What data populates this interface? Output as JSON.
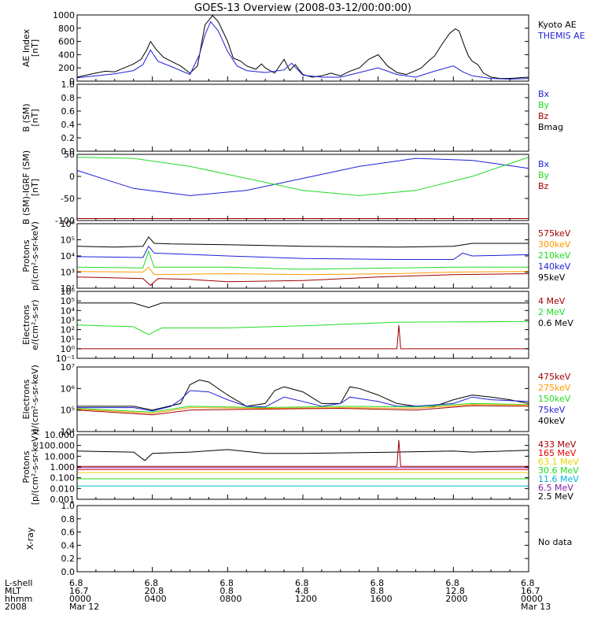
{
  "title": "GOES-13 Overview (2008-03-12/00:00:00)",
  "colors": {
    "black": "#000000",
    "blue": "#1f1fd8",
    "green": "#22dd22",
    "darkred": "#a00000",
    "orange": "#ff9900",
    "yellow": "#e6d400",
    "cyan": "#00b4d8",
    "purple": "#7a22a0",
    "red": "#e00000"
  },
  "panels": [
    {
      "id": "ae",
      "ylabel": [
        "AE Index",
        "[nT]"
      ],
      "ticks": [
        "1000",
        "800",
        "600",
        "400",
        "200",
        "0"
      ],
      "legend": [
        {
          "text": "Kyoto AE",
          "color": "black"
        },
        {
          "text": "THEMIS AE",
          "color": "blue"
        }
      ]
    },
    {
      "id": "bsm",
      "ylabel": [
        "B (SM)",
        "[nT]"
      ],
      "ticks": [
        "1.0",
        "0.8",
        "0.6",
        "0.4",
        "0.2",
        "0.0"
      ],
      "legend": [
        {
          "text": "Bx",
          "color": "blue"
        },
        {
          "text": "By",
          "color": "green"
        },
        {
          "text": "Bz",
          "color": "darkred"
        },
        {
          "text": "Bmag",
          "color": "black"
        }
      ]
    },
    {
      "id": "bigrf",
      "ylabel": [
        "B (SM)-IGRF (SM)",
        "[nT]"
      ],
      "ticks": [
        "50",
        "0",
        "-50",
        "-100"
      ],
      "legend": [
        {
          "text": "Bx",
          "color": "blue"
        },
        {
          "text": "By",
          "color": "green"
        },
        {
          "text": "Bz",
          "color": "darkred"
        }
      ]
    },
    {
      "id": "protons_mageds",
      "ylabel": [
        "Protons",
        "p/(cm²-s-sr-keV)"
      ],
      "ticks": [
        "10⁶",
        "10⁵",
        "10⁴",
        "10³",
        "10²"
      ],
      "legend": [
        {
          "text": "575keV",
          "color": "darkred"
        },
        {
          "text": "300keV",
          "color": "orange"
        },
        {
          "text": "210keV",
          "color": "green"
        },
        {
          "text": "140keV",
          "color": "blue"
        },
        {
          "text": "95keV",
          "color": "black"
        }
      ]
    },
    {
      "id": "electrons_epead",
      "ylabel": [
        "Electrons",
        "e/(cm²-s-sr)"
      ],
      "ticks": [
        "10⁶",
        "10⁵",
        "10⁴",
        "10³",
        "10²",
        "10¹",
        "10⁰",
        "10⁻¹"
      ],
      "legend": [
        {
          "text": "4 MeV",
          "color": "darkred"
        },
        {
          "text": "2 MeV",
          "color": "green"
        },
        {
          "text": "0.6 MeV",
          "color": "black"
        }
      ]
    },
    {
      "id": "electrons_maged",
      "ylabel": [
        "Electrons",
        "e/(cm²-s-sr-keV)"
      ],
      "ticks": [
        "10⁷",
        "10⁶",
        "10⁵",
        "10⁴"
      ],
      "legend": [
        {
          "text": "475keV",
          "color": "darkred"
        },
        {
          "text": "275keV",
          "color": "orange"
        },
        {
          "text": "150keV",
          "color": "green"
        },
        {
          "text": "75keV",
          "color": "blue"
        },
        {
          "text": "40keV",
          "color": "black"
        }
      ]
    },
    {
      "id": "protons_epead",
      "ylabel": [
        "Protons",
        "[p/(cm²-s-sr-keV)]"
      ],
      "ticks": [
        "10.000",
        "100.000",
        "10.000",
        "1.000",
        "0.100",
        "0.010",
        "0.001"
      ],
      "legend": [
        {
          "text": "433 MeV",
          "color": "darkred"
        },
        {
          "text": "165 MeV",
          "color": "red"
        },
        {
          "text": "63.1 MeV",
          "color": "yellow"
        },
        {
          "text": "30.6 MeV",
          "color": "green"
        },
        {
          "text": "11.6 MeV",
          "color": "cyan"
        },
        {
          "text": "6.5 MeV",
          "color": "purple"
        },
        {
          "text": "2.5 MeV",
          "color": "black"
        }
      ]
    },
    {
      "id": "xray",
      "ylabel": [
        "X-ray"
      ],
      "ticks": [
        "1.0",
        "0.8",
        "0.6",
        "0.4",
        "0.2",
        "0.0"
      ],
      "legend": [
        {
          "text": "No data",
          "color": "black"
        }
      ]
    }
  ],
  "xaxis": {
    "row_labels": [
      "L-shell",
      "MLT",
      "hhmm",
      "2008"
    ],
    "columns": [
      [
        "6.8",
        "16.7",
        "0000",
        "Mar 12"
      ],
      [
        "6.8",
        "20.8",
        "0400",
        ""
      ],
      [
        "6.8",
        "0.8",
        "0800",
        ""
      ],
      [
        "6.8",
        "4.8",
        "1200",
        ""
      ],
      [
        "6.8",
        "8.8",
        "1600",
        ""
      ],
      [
        "6.8",
        "12.8",
        "2000",
        ""
      ],
      [
        "6.8",
        "16.7",
        "0000",
        "Mar 13"
      ]
    ]
  },
  "chart_data": [
    {
      "type": "line",
      "x_unit": "hours UT",
      "xlim": [
        0,
        24
      ],
      "ylim": [
        0,
        1000
      ],
      "series": [
        {
          "name": "Kyoto AE",
          "color": "black",
          "x": [
            0,
            0.8,
            1.5,
            2,
            2.5,
            3,
            3.4,
            3.7,
            3.9,
            4.2,
            4.6,
            5,
            5.5,
            6,
            6.4,
            6.6,
            6.8,
            7,
            7.2,
            7.5,
            7.8,
            8,
            8.3,
            8.7,
            9,
            9.5,
            9.8,
            10,
            10.5,
            11,
            11.3,
            11.6,
            12,
            12.5,
            13,
            13.5,
            14,
            14.5,
            15,
            15.5,
            16,
            16.5,
            17,
            17.5,
            18,
            18.3,
            18.7,
            19,
            19.4,
            19.8,
            20.1,
            20.3,
            20.6,
            20.8,
            21,
            21.3,
            21.6,
            22,
            22.5,
            23,
            23.5,
            24
          ],
          "y": [
            60,
            110,
            150,
            140,
            200,
            260,
            330,
            470,
            600,
            480,
            360,
            300,
            230,
            120,
            230,
            540,
            850,
            920,
            990,
            900,
            720,
            600,
            350,
            300,
            230,
            180,
            260,
            200,
            120,
            330,
            160,
            250,
            100,
            60,
            80,
            120,
            80,
            150,
            200,
            330,
            400,
            230,
            130,
            100,
            160,
            200,
            310,
            380,
            560,
            720,
            790,
            760,
            520,
            380,
            300,
            250,
            120,
            60,
            40,
            40,
            50,
            60
          ]
        },
        {
          "name": "THEMIS AE",
          "color": "blue",
          "x": [
            0,
            1,
            2,
            3,
            3.5,
            3.9,
            4.3,
            5,
            6,
            6.5,
            6.8,
            7.1,
            7.5,
            8,
            8.5,
            9,
            10,
            11,
            11.4,
            12,
            13,
            14,
            15,
            16,
            17,
            18,
            19,
            20,
            20.5,
            21,
            22,
            23,
            24
          ],
          "y": [
            50,
            80,
            110,
            160,
            250,
            470,
            300,
            220,
            100,
            400,
            700,
            900,
            760,
            450,
            230,
            160,
            130,
            170,
            270,
            90,
            60,
            60,
            130,
            200,
            100,
            60,
            150,
            230,
            140,
            80,
            40,
            30,
            40
          ]
        }
      ]
    },
    {
      "type": "line",
      "xlim": [
        0,
        24
      ],
      "ylim": [
        0,
        1
      ],
      "series": []
    },
    {
      "type": "line",
      "x_unit": "hours UT",
      "xlim": [
        0,
        24
      ],
      "ylim": [
        -110,
        55
      ],
      "series": [
        {
          "name": "Bx",
          "color": "blue",
          "x": [
            0,
            3,
            6,
            9,
            12,
            15,
            18,
            21,
            24
          ],
          "y": [
            15,
            -30,
            -48,
            -35,
            -5,
            25,
            45,
            40,
            20
          ]
        },
        {
          "name": "By",
          "color": "green",
          "x": [
            0,
            3,
            6,
            9,
            12,
            15,
            18,
            21,
            24
          ],
          "y": [
            48,
            45,
            25,
            -5,
            -35,
            -48,
            -35,
            0,
            48
          ]
        },
        {
          "name": "Bz",
          "color": "darkred",
          "x": [
            0,
            24
          ],
          "y": [
            -105,
            -105
          ]
        }
      ]
    },
    {
      "type": "line",
      "x_unit": "hours UT",
      "y_scale": "log",
      "xlim": [
        0,
        24
      ],
      "ylim": [
        100,
        1000000
      ],
      "series": [
        {
          "name": "95keV",
          "color": "black",
          "x": [
            0,
            2,
            3.5,
            3.8,
            4.1,
            5,
            8,
            12,
            17,
            20,
            21,
            24
          ],
          "y": [
            40000,
            35000,
            40000,
            150000,
            60000,
            55000,
            50000,
            40000,
            35000,
            40000,
            60000,
            60000
          ]
        },
        {
          "name": "140keV",
          "color": "blue",
          "x": [
            0,
            3.5,
            3.8,
            4.1,
            8,
            12,
            17,
            20,
            20.5,
            21,
            24
          ],
          "y": [
            9000,
            8000,
            40000,
            15000,
            10000,
            7000,
            6000,
            6000,
            15000,
            10000,
            12000
          ]
        },
        {
          "name": "210keV",
          "color": "green",
          "x": [
            0,
            3.5,
            3.8,
            4.1,
            8,
            12,
            17,
            20,
            24
          ],
          "y": [
            2000,
            1800,
            20000,
            2000,
            2000,
            1500,
            1800,
            2000,
            2000
          ]
        },
        {
          "name": "300keV",
          "color": "orange",
          "x": [
            0,
            3.5,
            3.8,
            4.1,
            8,
            12,
            17,
            20,
            24
          ],
          "y": [
            1100,
            1000,
            2000,
            700,
            800,
            700,
            800,
            1000,
            1100
          ]
        },
        {
          "name": "575keV",
          "color": "darkred",
          "x": [
            0,
            3.5,
            3.9,
            4.3,
            6,
            8,
            12,
            16,
            20,
            24
          ],
          "y": [
            500,
            400,
            150,
            400,
            350,
            250,
            300,
            500,
            700,
            800
          ]
        }
      ]
    },
    {
      "type": "line",
      "x_unit": "hours UT",
      "y_scale": "log",
      "xlim": [
        0,
        24
      ],
      "ylim": [
        0.1,
        1000000
      ],
      "series": [
        {
          "name": "0.6 MeV",
          "color": "black",
          "x": [
            0,
            3,
            3.8,
            4.5,
            8,
            12,
            17,
            24
          ],
          "y": [
            60000,
            60000,
            20000,
            60000,
            60000,
            60000,
            60000,
            60000
          ]
        },
        {
          "name": "2 MeV",
          "color": "green",
          "x": [
            0,
            3,
            3.8,
            4.5,
            8,
            12,
            17,
            24
          ],
          "y": [
            300,
            200,
            30,
            150,
            150,
            250,
            600,
            700
          ]
        },
        {
          "name": "4 MeV",
          "color": "darkred",
          "x": [
            0,
            17,
            17.1,
            17.2,
            24
          ],
          "y": [
            1,
            1,
            300,
            1,
            1
          ]
        }
      ]
    },
    {
      "type": "line",
      "x_unit": "hours UT",
      "y_scale": "log",
      "xlim": [
        0,
        24
      ],
      "ylim": [
        10000,
        10000000
      ],
      "series": [
        {
          "name": "40keV",
          "color": "black",
          "x": [
            0,
            3,
            4,
            5.5,
            6,
            6.5,
            7,
            8,
            9,
            10,
            10.5,
            11,
            12,
            13,
            14,
            14.5,
            15,
            16,
            17,
            18,
            19,
            20,
            21,
            22,
            23,
            24
          ],
          "y": [
            150000,
            150000,
            100000,
            200000,
            1500000,
            2500000,
            2000000,
            500000,
            150000,
            200000,
            800000,
            1200000,
            700000,
            200000,
            200000,
            1200000,
            1000000,
            500000,
            200000,
            150000,
            150000,
            300000,
            500000,
            400000,
            300000,
            200000
          ]
        },
        {
          "name": "75keV",
          "color": "blue",
          "x": [
            0,
            3,
            4,
            5,
            5.5,
            6,
            7,
            8,
            9,
            10,
            11,
            12,
            13,
            14,
            14.5,
            16,
            17,
            18,
            20,
            21,
            22,
            24
          ],
          "y": [
            130000,
            130000,
            90000,
            150000,
            300000,
            800000,
            700000,
            300000,
            150000,
            140000,
            400000,
            250000,
            150000,
            200000,
            400000,
            250000,
            150000,
            150000,
            200000,
            400000,
            300000,
            250000
          ]
        },
        {
          "name": "150keV",
          "color": "green",
          "x": [
            0,
            4,
            6,
            10,
            14,
            18,
            21,
            24
          ],
          "y": [
            120000,
            80000,
            150000,
            130000,
            150000,
            140000,
            200000,
            180000
          ]
        },
        {
          "name": "275keV",
          "color": "orange",
          "x": [
            0,
            4,
            6,
            10,
            14,
            18,
            21,
            24
          ],
          "y": [
            110000,
            70000,
            130000,
            120000,
            130000,
            120000,
            180000,
            170000
          ]
        },
        {
          "name": "475keV",
          "color": "darkred",
          "x": [
            0,
            4,
            6,
            10,
            14,
            18,
            21,
            24
          ],
          "y": [
            100000,
            60000,
            100000,
            110000,
            120000,
            100000,
            160000,
            150000
          ]
        }
      ]
    },
    {
      "type": "line",
      "x_unit": "hours UT",
      "y_scale": "log",
      "xlim": [
        0,
        24
      ],
      "ylim": [
        0.0005,
        1000
      ],
      "series": [
        {
          "name": "2.5 MeV",
          "color": "black",
          "x": [
            0,
            3,
            3.6,
            4,
            6,
            8,
            10,
            12,
            17,
            20,
            21,
            24
          ],
          "y": [
            25,
            20,
            3,
            15,
            20,
            35,
            15,
            15,
            20,
            25,
            20,
            30
          ]
        },
        {
          "name": "6.5 MeV",
          "color": "purple",
          "x": [
            0,
            24
          ],
          "y": [
            0.6,
            0.6
          ]
        },
        {
          "name": "11.6 MeV",
          "color": "cyan",
          "x": [
            0,
            24
          ],
          "y": [
            0.01,
            0.01
          ]
        },
        {
          "name": "30.6 MeV",
          "color": "green",
          "x": [
            0,
            24
          ],
          "y": [
            0.05,
            0.05
          ]
        },
        {
          "name": "63.1 MeV",
          "color": "yellow",
          "x": [
            0,
            24
          ],
          "y": [
            0.2,
            0.2
          ]
        },
        {
          "name": "165 MeV",
          "color": "red",
          "x": [
            0,
            24
          ],
          "y": [
            0.4,
            0.4
          ]
        },
        {
          "name": "433 MeV",
          "color": "darkred",
          "x": [
            0,
            17,
            17.1,
            17.2,
            24
          ],
          "y": [
            0.8,
            0.8,
            300,
            0.8,
            0.8
          ]
        }
      ]
    },
    {
      "type": "line",
      "xlim": [
        0,
        24
      ],
      "ylim": [
        0,
        1
      ],
      "series": []
    }
  ]
}
